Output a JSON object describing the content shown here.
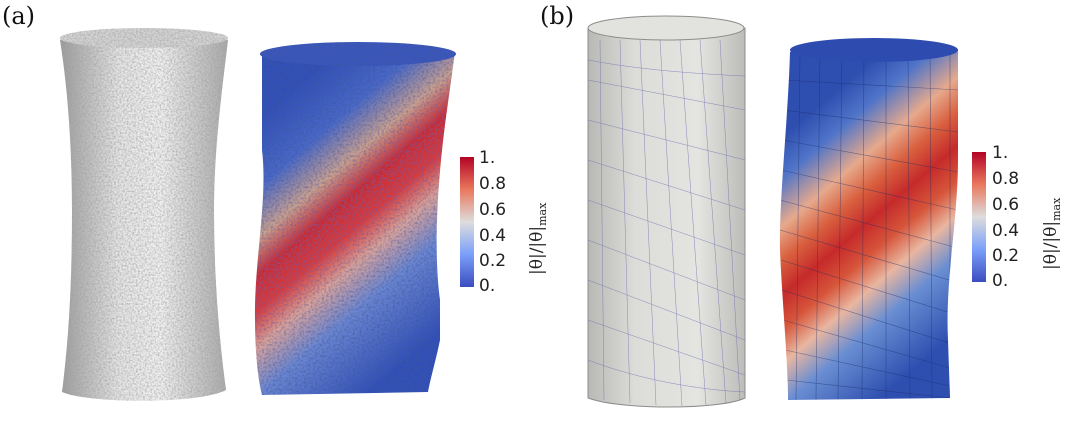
{
  "panels": {
    "a": {
      "label": "(a)"
    },
    "b": {
      "label": "(b)"
    }
  },
  "colorbar": {
    "ticks": [
      "1.",
      "0.8",
      "0.6",
      "0.4",
      "0.2",
      "0."
    ],
    "title_main": "|θ|/|θ|",
    "title_sub": "max",
    "colors": {
      "high": "#b30326",
      "mid": "#dddddd",
      "low": "#3b4cc0"
    }
  }
}
